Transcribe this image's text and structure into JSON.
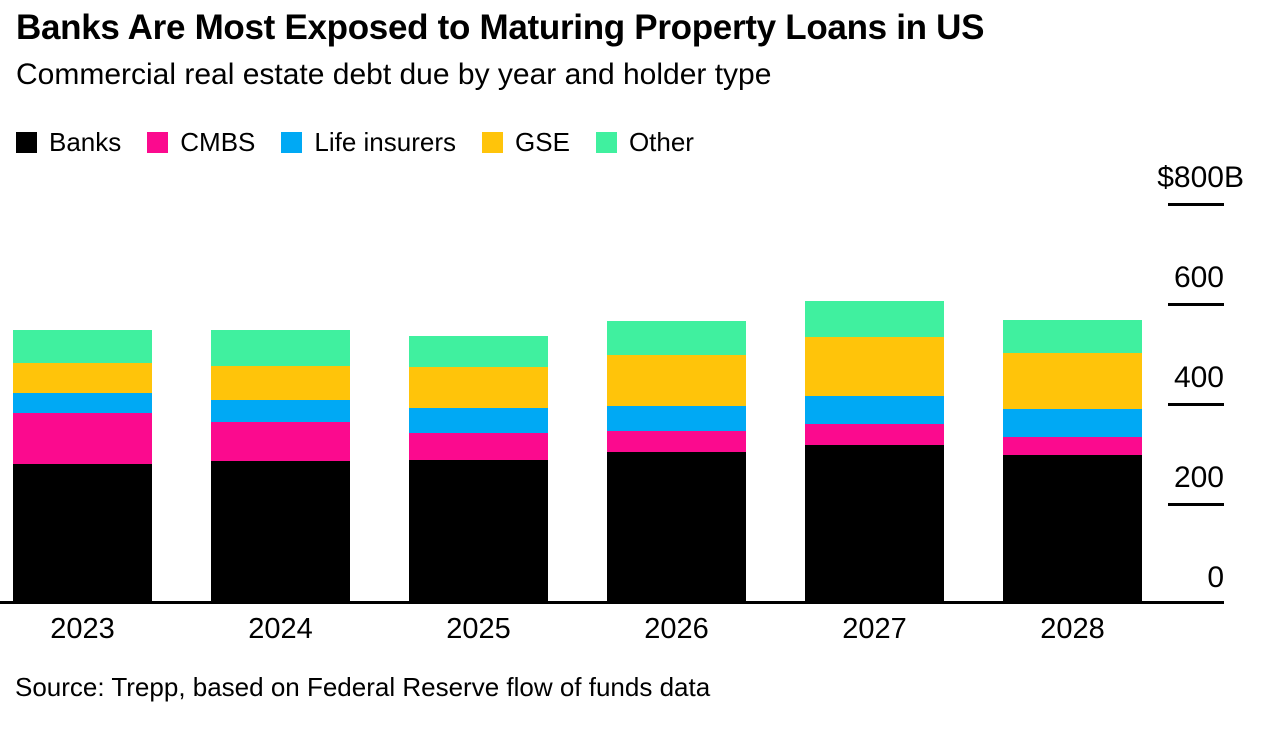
{
  "header": {
    "title": "Banks Are Most Exposed to Maturing Property Loans in US",
    "subtitle": "Commercial real estate debt due by year and holder type"
  },
  "source": "Source: Trepp, based on Federal Reserve flow of funds data",
  "colors": {
    "background": "#ffffff",
    "axis": "#000000",
    "banks": "#000000",
    "cmbs": "#FB0A8E",
    "life_insurers": "#00A9F4",
    "gse": "#FFC40A",
    "other": "#40F09F"
  },
  "chart_data": {
    "type": "bar",
    "stacked": true,
    "unit": "billions of US dollars",
    "title": "Banks Are Most Exposed to Maturing Property Loans in US",
    "subtitle": "Commercial real estate debt due by year and holder type",
    "categories": [
      "2023",
      "2024",
      "2025",
      "2026",
      "2027",
      "2028"
    ],
    "series": [
      {
        "name": "Banks",
        "color": "#000000",
        "values": [
          274,
          280,
          282,
          298,
          312,
          292
        ]
      },
      {
        "name": "CMBS",
        "color": "#FB0A8E",
        "values": [
          102,
          78,
          54,
          42,
          42,
          36
        ]
      },
      {
        "name": "Life insurers",
        "color": "#00A9F4",
        "values": [
          40,
          44,
          50,
          50,
          56,
          56
        ]
      },
      {
        "name": "GSE",
        "color": "#FFC40A",
        "values": [
          60,
          68,
          82,
          102,
          118,
          112
        ]
      },
      {
        "name": "Other",
        "color": "#40F09F",
        "values": [
          66,
          72,
          62,
          68,
          72,
          66
        ]
      }
    ],
    "totals": [
      542,
      542,
      530,
      560,
      600,
      562
    ],
    "y_axis": {
      "side": "right",
      "ylim": [
        0,
        800
      ],
      "tick_values": [
        800,
        600,
        400,
        200,
        0
      ],
      "tick_labels": [
        "$800B",
        "600",
        "400",
        "200",
        "0"
      ],
      "top_label_align_text": "$800",
      "top_label_suffix": "B"
    },
    "xlabel": "",
    "ylabel": "",
    "legend_position": "top",
    "grid": false
  }
}
